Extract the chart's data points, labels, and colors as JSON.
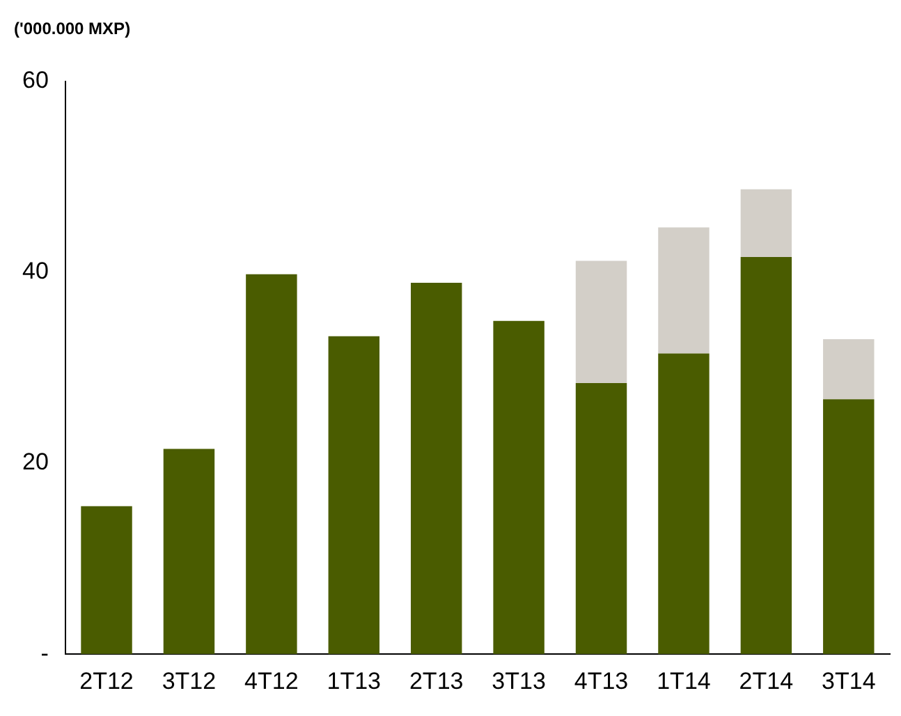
{
  "chart_data": {
    "type": "bar",
    "title": "('000.000 MXP)",
    "stacked": true,
    "categories": [
      "2T12",
      "3T12",
      "4T12",
      "1T13",
      "2T13",
      "3T13",
      "4T13",
      "1T14",
      "2T14",
      "3T14"
    ],
    "series": [
      {
        "color": "#4a5c00",
        "values": [
          15.5,
          21.5,
          39.8,
          33.3,
          38.9,
          34.9,
          28.4,
          31.5,
          41.6,
          26.7
        ]
      },
      {
        "color": "#d3cfc8",
        "values": [
          null,
          null,
          null,
          null,
          null,
          null,
          12.8,
          13.2,
          7.1,
          6.3
        ]
      }
    ],
    "ylim": [
      0,
      60
    ],
    "yticks": [
      {
        "value": 0,
        "label": "-"
      },
      {
        "value": 20,
        "label": "20"
      },
      {
        "value": 40,
        "label": "40"
      },
      {
        "value": 60,
        "label": "60"
      }
    ],
    "grid": false,
    "legend": false
  }
}
